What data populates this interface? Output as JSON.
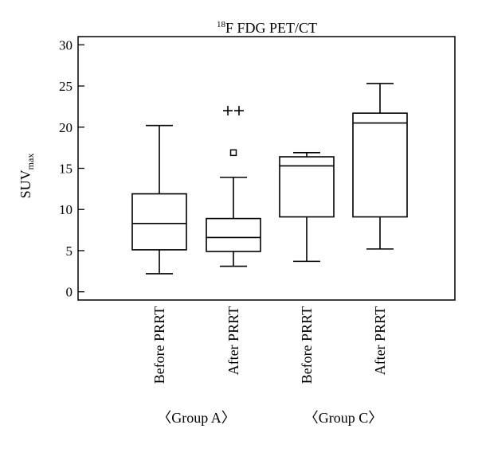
{
  "chart_data": {
    "type": "boxplot",
    "title": {
      "superscript": "18",
      "text": "F FDG PET/CT"
    },
    "ylabel": {
      "main": "SUV",
      "subscript": "max"
    },
    "ylim": [
      -1,
      31
    ],
    "yticks": [
      0,
      5,
      10,
      15,
      20,
      25,
      30
    ],
    "grid": false,
    "boxes": [
      {
        "label": "Before PRRT",
        "group": "Group A",
        "whisker_low": 2.2,
        "q1": 5.1,
        "median": 8.3,
        "q3": 11.9,
        "whisker_high": 20.2,
        "outliers": [],
        "extremes": []
      },
      {
        "label": "After PRRT",
        "group": "Group A",
        "whisker_low": 3.1,
        "q1": 4.9,
        "median": 6.6,
        "q3": 8.9,
        "whisker_high": 13.9,
        "outliers": [
          16.9
        ],
        "extremes": [
          22.0,
          22.0
        ]
      },
      {
        "label": "Before PRRT",
        "group": "Group C",
        "whisker_low": 3.7,
        "q1": 9.1,
        "median": 15.3,
        "q3": 16.4,
        "whisker_high": 16.9,
        "outliers": [],
        "extremes": []
      },
      {
        "label": "After PRRT",
        "group": "Group C",
        "whisker_low": 5.2,
        "q1": 9.1,
        "median": 20.5,
        "q3": 21.7,
        "whisker_high": 25.3,
        "outliers": [],
        "extremes": []
      }
    ],
    "groups": [
      {
        "label": "〈Group A〉",
        "boxes": [
          0,
          1
        ]
      },
      {
        "label": "〈Group C〉",
        "boxes": [
          2,
          3
        ]
      }
    ]
  }
}
